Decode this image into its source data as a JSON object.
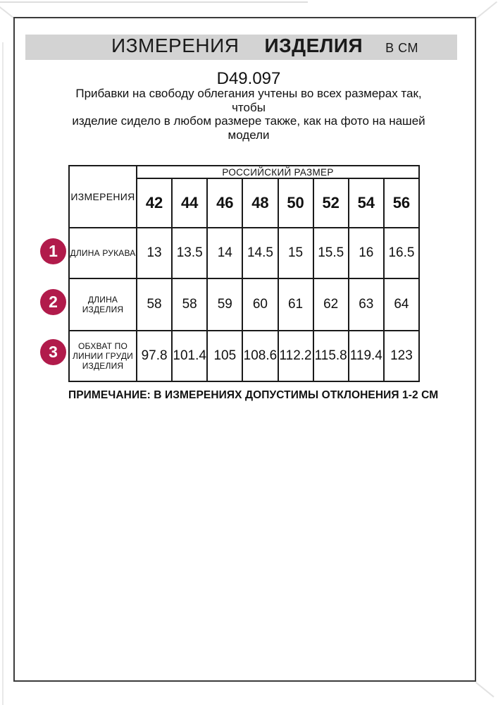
{
  "header": {
    "word1": "ИЗМЕРЕНИЯ",
    "word2": "ИЗДЕЛИЯ",
    "unit": "В СМ"
  },
  "product_code": "D49.097",
  "description_lines": [
    "Прибавки на свободу облегания учтены во всех размерах так, чтобы",
    "изделие сидело в любом размере также, как на фото на нашей",
    "модели"
  ],
  "table": {
    "corner_label": "ИЗМЕРЕНИЯ",
    "region_label": "РОССИЙСКИЙ РАЗМЕР",
    "sizes": [
      "42",
      "44",
      "46",
      "48",
      "50",
      "52",
      "54",
      "56"
    ],
    "rows": [
      {
        "num": "1",
        "label": [
          "ДЛИНА РУКАВА"
        ],
        "values": [
          "13",
          "13.5",
          "14",
          "14.5",
          "15",
          "15.5",
          "16",
          "16.5"
        ]
      },
      {
        "num": "2",
        "label": [
          "ДЛИНА",
          "ИЗДЕЛИЯ"
        ],
        "values": [
          "58",
          "58",
          "59",
          "60",
          "61",
          "62",
          "63",
          "64"
        ]
      },
      {
        "num": "3",
        "label": [
          "ОБХВАТ ПО",
          "ЛИНИИ ГРУДИ",
          "ИЗДЕЛИЯ"
        ],
        "values": [
          "97.8",
          "101.4",
          "105",
          "108.6",
          "112.2",
          "115.8",
          "119.4",
          "123"
        ]
      }
    ]
  },
  "note": "ПРИМЕЧАНИЕ: В ИЗМЕРЕНИЯХ ДОПУСТИМЫ ОТКЛОНЕНИЯ 1-2 СМ",
  "colors": {
    "badge": "#b11b4b",
    "header_bar": "#d3d3d3",
    "frame_border": "#3b3b3b",
    "table_border": "#1a1a1a"
  }
}
